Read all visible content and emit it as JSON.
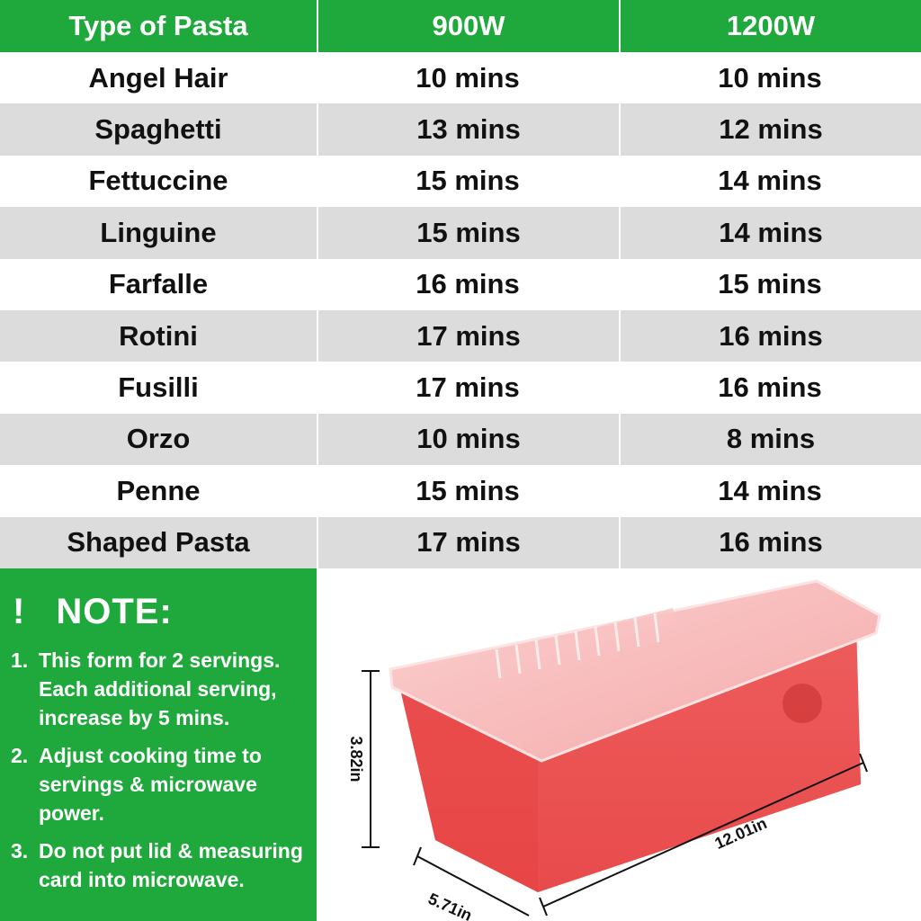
{
  "table": {
    "header": [
      "Type of Pasta",
      "900W",
      "1200W"
    ],
    "rows": [
      [
        "Angel Hair",
        "10 mins",
        "10 mins"
      ],
      [
        "Spaghetti",
        "13 mins",
        "12 mins"
      ],
      [
        "Fettuccine",
        "15 mins",
        "14 mins"
      ],
      [
        "Linguine",
        "15 mins",
        "14 mins"
      ],
      [
        "Farfalle",
        "16 mins",
        "15 mins"
      ],
      [
        "Rotini",
        "17 mins",
        "16 mins"
      ],
      [
        "Fusilli",
        "17 mins",
        "16 mins"
      ],
      [
        "Orzo",
        "10 mins",
        "8 mins"
      ],
      [
        "Penne",
        "15 mins",
        "14 mins"
      ],
      [
        "Shaped Pasta",
        "17 mins",
        "16 mins"
      ]
    ]
  },
  "note": {
    "icon": "!",
    "title": "NOTE:",
    "items": [
      {
        "marker": "1.",
        "text": "This form for 2 servings. Each additional serving, increase by 5 mins."
      },
      {
        "marker": "2.",
        "text": "Adjust cooking time to servings & microwave power."
      },
      {
        "marker": "3.",
        "text": "Do not put lid & measuring card into microwave."
      }
    ]
  },
  "dimensions": {
    "height": "3.82in",
    "length": "12.01in",
    "width": "5.71in"
  }
}
